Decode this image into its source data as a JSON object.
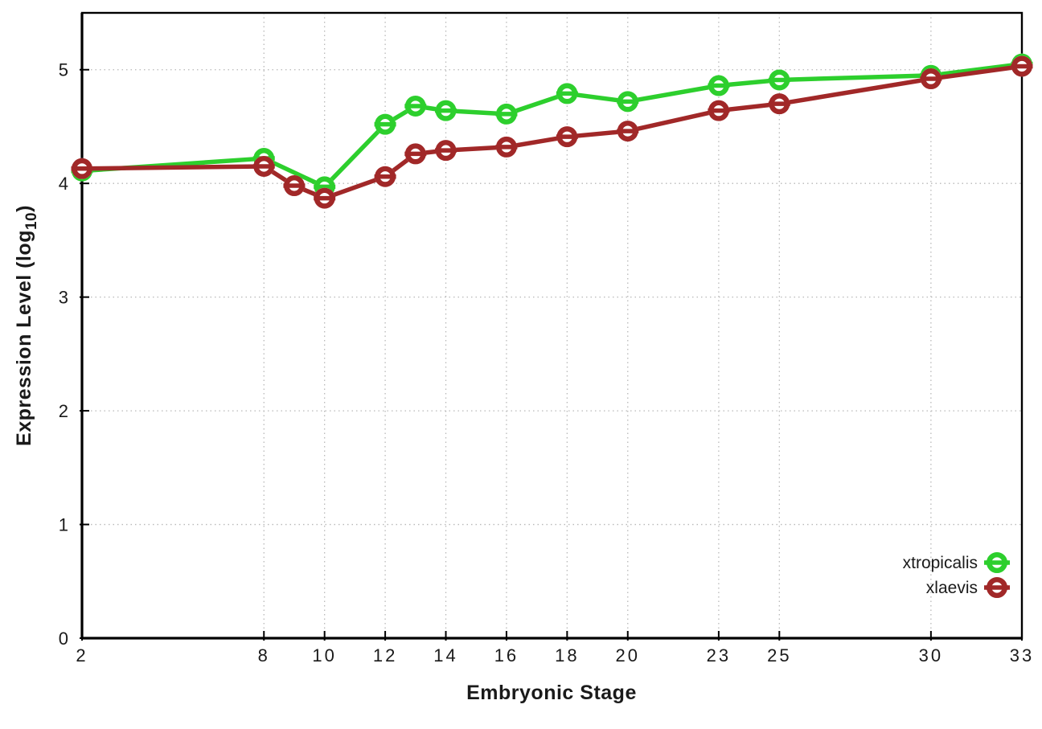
{
  "chart_data": {
    "type": "line",
    "title": "",
    "xlabel": "Embryonic Stage",
    "ylabel_pre": "Expression Level (log",
    "ylabel_sub": "10",
    "ylabel_post": ")",
    "xlim": [
      2,
      33
    ],
    "ylim": [
      0,
      5.5
    ],
    "x_ticks": [
      2,
      8,
      10,
      12,
      14,
      16,
      18,
      20,
      23,
      25,
      30,
      33
    ],
    "y_ticks": [
      0,
      1,
      2,
      3,
      4,
      5
    ],
    "grid": true,
    "grid_style": "dotted",
    "legend_position": "inside-right",
    "colors": {
      "xtropicalis": "#2dcf2d",
      "xlaevis": "#a12828",
      "grid": "#b8b8b8",
      "axis": "#000000"
    },
    "series": [
      {
        "name": "xtropicalis",
        "color": "#2dcf2d",
        "x": [
          2,
          8,
          10,
          12,
          13,
          14,
          16,
          18,
          20,
          23,
          25,
          30,
          33
        ],
        "y": [
          4.11,
          4.22,
          3.97,
          4.52,
          4.68,
          4.64,
          4.61,
          4.79,
          4.72,
          4.86,
          4.91,
          4.95,
          5.05
        ]
      },
      {
        "name": "xlaevis",
        "color": "#a12828",
        "x": [
          2,
          8,
          9,
          10,
          12,
          13,
          14,
          16,
          18,
          20,
          23,
          25,
          30,
          33
        ],
        "y": [
          4.13,
          4.15,
          3.98,
          3.87,
          4.06,
          4.26,
          4.29,
          4.32,
          4.41,
          4.46,
          4.64,
          4.7,
          4.92,
          5.03
        ]
      }
    ]
  }
}
